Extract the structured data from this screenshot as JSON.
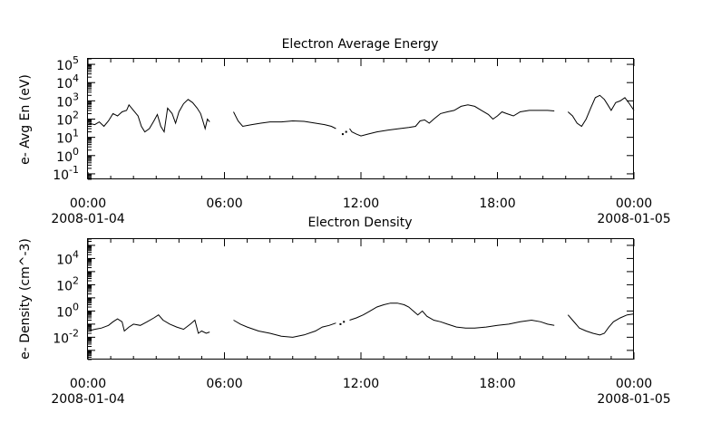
{
  "colors": {
    "background": "#ffffff",
    "foreground": "#000000"
  },
  "chart_data": [
    {
      "type": "line",
      "title": "Electron Average Energy",
      "ylabel": "e- Avg En (eV)",
      "yscale": "log",
      "ylim": [
        0.05,
        200000
      ],
      "yticks": [
        {
          "value": 0.1,
          "base": "10",
          "exp": "-1"
        },
        {
          "value": 1,
          "base": "10",
          "exp": "0"
        },
        {
          "value": 10,
          "base": "10",
          "exp": "1"
        },
        {
          "value": 100,
          "base": "10",
          "exp": "2"
        },
        {
          "value": 1000,
          "base": "10",
          "exp": "3"
        },
        {
          "value": 10000,
          "base": "10",
          "exp": "4"
        },
        {
          "value": 100000,
          "base": "10",
          "exp": "5"
        }
      ],
      "xlim": [
        "2008-01-04 00:00",
        "2008-01-05 00:00"
      ],
      "xticks": [
        {
          "hours": 0,
          "label": "00:00",
          "sublabel": "2008-01-04"
        },
        {
          "hours": 6,
          "label": "06:00",
          "sublabel": ""
        },
        {
          "hours": 12,
          "label": "12:00",
          "sublabel": ""
        },
        {
          "hours": 18,
          "label": "18:00",
          "sublabel": ""
        },
        {
          "hours": 24,
          "label": "00:00",
          "sublabel": "2008-01-05"
        }
      ],
      "series": [
        {
          "segments": [
            [
              [
                0.0,
                60
              ],
              [
                0.3,
                50
              ],
              [
                0.5,
                70
              ],
              [
                0.7,
                40
              ],
              [
                0.9,
                80
              ],
              [
                1.1,
                200
              ],
              [
                1.3,
                150
              ],
              [
                1.5,
                250
              ],
              [
                1.7,
                300
              ],
              [
                1.8,
                600
              ],
              [
                2.0,
                300
              ],
              [
                2.2,
                150
              ],
              [
                2.35,
                40
              ],
              [
                2.5,
                20
              ],
              [
                2.7,
                30
              ],
              [
                2.9,
                80
              ],
              [
                3.05,
                180
              ],
              [
                3.2,
                40
              ],
              [
                3.35,
                20
              ],
              [
                3.5,
                400
              ],
              [
                3.7,
                200
              ],
              [
                3.85,
                60
              ],
              [
                4.0,
                250
              ],
              [
                4.2,
                700
              ],
              [
                4.4,
                1200
              ],
              [
                4.6,
                800
              ],
              [
                4.8,
                400
              ],
              [
                4.95,
                200
              ],
              [
                5.05,
                80
              ],
              [
                5.15,
                30
              ],
              [
                5.25,
                100
              ],
              [
                5.35,
                70
              ]
            ],
            [
              [
                6.4,
                250
              ],
              [
                6.6,
                80
              ],
              [
                6.8,
                40
              ],
              [
                7.2,
                50
              ],
              [
                7.6,
                60
              ],
              [
                8.0,
                70
              ],
              [
                8.5,
                70
              ],
              [
                9.0,
                80
              ],
              [
                9.5,
                75
              ],
              [
                10.0,
                60
              ],
              [
                10.4,
                50
              ],
              [
                10.7,
                40
              ],
              [
                10.9,
                30
              ]
            ],
            [
              [
                11.5,
                30
              ],
              [
                11.6,
                20
              ],
              [
                11.8,
                15
              ],
              [
                12.0,
                12
              ],
              [
                12.3,
                15
              ],
              [
                12.7,
                20
              ],
              [
                13.2,
                25
              ],
              [
                13.7,
                30
              ],
              [
                14.1,
                35
              ],
              [
                14.4,
                40
              ],
              [
                14.6,
                80
              ],
              [
                14.8,
                90
              ],
              [
                15.0,
                60
              ],
              [
                15.2,
                100
              ],
              [
                15.5,
                200
              ],
              [
                15.8,
                250
              ],
              [
                16.1,
                300
              ],
              [
                16.4,
                500
              ],
              [
                16.7,
                600
              ],
              [
                17.0,
                500
              ],
              [
                17.3,
                300
              ],
              [
                17.6,
                180
              ],
              [
                17.8,
                100
              ],
              [
                18.0,
                150
              ],
              [
                18.2,
                250
              ],
              [
                18.4,
                200
              ],
              [
                18.7,
                150
              ],
              [
                19.0,
                250
              ],
              [
                19.4,
                300
              ],
              [
                19.8,
                300
              ],
              [
                20.2,
                300
              ],
              [
                20.5,
                280
              ]
            ],
            [
              [
                21.1,
                250
              ],
              [
                21.3,
                150
              ],
              [
                21.5,
                60
              ],
              [
                21.7,
                40
              ],
              [
                21.9,
                100
              ],
              [
                22.1,
                400
              ],
              [
                22.3,
                1500
              ],
              [
                22.5,
                2000
              ],
              [
                22.7,
                1200
              ],
              [
                22.85,
                600
              ],
              [
                23.0,
                300
              ],
              [
                23.2,
                800
              ],
              [
                23.4,
                1000
              ],
              [
                23.6,
                1500
              ],
              [
                23.8,
                700
              ],
              [
                24.0,
                300
              ]
            ]
          ],
          "dots": [
            [
              11.2,
              15
            ],
            [
              11.35,
              20
            ]
          ]
        }
      ]
    },
    {
      "type": "line",
      "title": "Electron Density",
      "ylabel": "e- Density (cm^-3)",
      "yscale": "log",
      "ylim": [
        0.0002,
        300000
      ],
      "yticks": [
        {
          "value": 0.01,
          "base": "10",
          "exp": "-2"
        },
        {
          "value": 1,
          "base": "10",
          "exp": "0"
        },
        {
          "value": 100,
          "base": "10",
          "exp": "2"
        },
        {
          "value": 10000,
          "base": "10",
          "exp": "4"
        }
      ],
      "xlim": [
        "2008-01-04 00:00",
        "2008-01-05 00:00"
      ],
      "xticks": [
        {
          "hours": 0,
          "label": "00:00",
          "sublabel": "2008-01-04"
        },
        {
          "hours": 6,
          "label": "06:00",
          "sublabel": ""
        },
        {
          "hours": 12,
          "label": "12:00",
          "sublabel": ""
        },
        {
          "hours": 18,
          "label": "18:00",
          "sublabel": ""
        },
        {
          "hours": 24,
          "label": "00:00",
          "sublabel": "2008-01-05"
        }
      ],
      "series": [
        {
          "segments": [
            [
              [
                0.0,
                0.03
              ],
              [
                0.3,
                0.04
              ],
              [
                0.6,
                0.05
              ],
              [
                0.9,
                0.08
              ],
              [
                1.1,
                0.15
              ],
              [
                1.3,
                0.25
              ],
              [
                1.5,
                0.15
              ],
              [
                1.6,
                0.03
              ],
              [
                1.8,
                0.06
              ],
              [
                2.0,
                0.1
              ],
              [
                2.3,
                0.08
              ],
              [
                2.6,
                0.15
              ],
              [
                2.9,
                0.3
              ],
              [
                3.1,
                0.5
              ],
              [
                3.3,
                0.2
              ],
              [
                3.6,
                0.1
              ],
              [
                3.9,
                0.06
              ],
              [
                4.2,
                0.04
              ],
              [
                4.5,
                0.1
              ],
              [
                4.7,
                0.2
              ],
              [
                4.85,
                0.02
              ],
              [
                5.0,
                0.03
              ],
              [
                5.2,
                0.02
              ],
              [
                5.35,
                0.025
              ]
            ],
            [
              [
                6.4,
                0.2
              ],
              [
                6.7,
                0.1
              ],
              [
                7.0,
                0.06
              ],
              [
                7.5,
                0.03
              ],
              [
                8.0,
                0.02
              ],
              [
                8.5,
                0.012
              ],
              [
                9.0,
                0.01
              ],
              [
                9.5,
                0.015
              ],
              [
                10.0,
                0.03
              ],
              [
                10.3,
                0.06
              ],
              [
                10.6,
                0.08
              ],
              [
                10.9,
                0.12
              ]
            ],
            [
              [
                11.5,
                0.2
              ],
              [
                11.8,
                0.3
              ],
              [
                12.1,
                0.5
              ],
              [
                12.4,
                1
              ],
              [
                12.7,
                2
              ],
              [
                13.0,
                3
              ],
              [
                13.3,
                4
              ],
              [
                13.6,
                4
              ],
              [
                13.9,
                3
              ],
              [
                14.1,
                2
              ],
              [
                14.3,
                1
              ],
              [
                14.5,
                0.5
              ],
              [
                14.7,
                1
              ],
              [
                14.9,
                0.4
              ],
              [
                15.2,
                0.2
              ],
              [
                15.5,
                0.15
              ],
              [
                15.8,
                0.1
              ],
              [
                16.2,
                0.06
              ],
              [
                16.6,
                0.05
              ],
              [
                17.0,
                0.05
              ],
              [
                17.5,
                0.06
              ],
              [
                18.0,
                0.08
              ],
              [
                18.5,
                0.1
              ],
              [
                19.0,
                0.15
              ],
              [
                19.5,
                0.2
              ],
              [
                19.9,
                0.15
              ],
              [
                20.2,
                0.1
              ],
              [
                20.5,
                0.08
              ]
            ],
            [
              [
                21.1,
                0.5
              ],
              [
                21.3,
                0.2
              ],
              [
                21.6,
                0.05
              ],
              [
                21.9,
                0.03
              ],
              [
                22.2,
                0.02
              ],
              [
                22.5,
                0.015
              ],
              [
                22.7,
                0.02
              ],
              [
                22.9,
                0.06
              ],
              [
                23.1,
                0.15
              ],
              [
                23.4,
                0.3
              ],
              [
                23.7,
                0.5
              ],
              [
                24.0,
                0.6
              ]
            ]
          ],
          "dots": [
            [
              11.1,
              0.1
            ],
            [
              11.25,
              0.15
            ]
          ]
        }
      ]
    }
  ]
}
